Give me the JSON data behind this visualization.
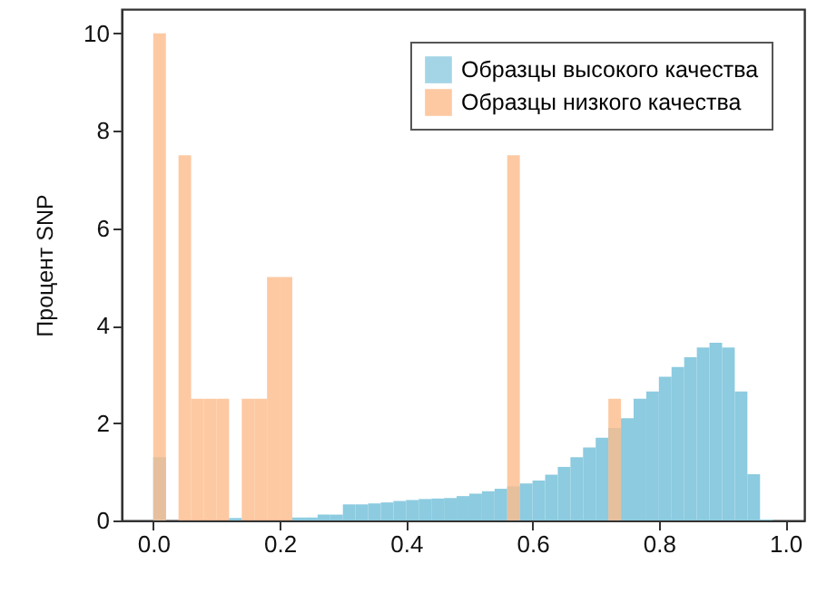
{
  "chart_data": {
    "type": "histogram",
    "ylabel": "Процент SNP",
    "bins": [
      0,
      0.02,
      0.04,
      0.06,
      0.08,
      0.1,
      0.12,
      0.14,
      0.16,
      0.18,
      0.2,
      0.22,
      0.24,
      0.26,
      0.28,
      0.3,
      0.32,
      0.34,
      0.36,
      0.38,
      0.4,
      0.42,
      0.44,
      0.46,
      0.48,
      0.5,
      0.52,
      0.54,
      0.56,
      0.58,
      0.6,
      0.62,
      0.64,
      0.66,
      0.68,
      0.7,
      0.72,
      0.74,
      0.76,
      0.78,
      0.8,
      0.82,
      0.84,
      0.86,
      0.88,
      0.9,
      0.92,
      0.94,
      0.96,
      0.98,
      1.0
    ],
    "series": [
      {
        "name": "Образцы высокого качества",
        "color": "#8ccbe0",
        "values": [
          1.3,
          0,
          0,
          0,
          0,
          0,
          0.05,
          null,
          null,
          null,
          null,
          0.06,
          0.06,
          0.12,
          0.12,
          0.33,
          0.33,
          0.35,
          0.37,
          0.4,
          0.42,
          0.44,
          0.45,
          0.46,
          0.5,
          0.55,
          0.6,
          0.65,
          0.7,
          0.76,
          0.82,
          0.94,
          1.1,
          1.3,
          1.5,
          1.7,
          1.9,
          2.1,
          2.5,
          2.65,
          2.95,
          3.15,
          3.35,
          3.55,
          3.65,
          3.55,
          2.65,
          0.95,
          0.02,
          0
        ]
      },
      {
        "name": "Образцы низкого качества",
        "color": "#fdbb8c",
        "values": [
          10,
          0,
          7.5,
          2.5,
          2.5,
          2.5,
          0,
          2.5,
          2.5,
          5,
          5,
          0,
          0,
          0,
          0,
          0,
          0,
          0,
          0,
          0,
          0,
          0,
          0,
          0,
          0,
          0,
          0,
          0,
          7.5,
          0,
          0,
          0,
          0,
          0,
          0,
          0,
          2.5,
          0,
          0,
          0,
          0,
          0,
          0,
          0,
          0,
          0,
          0,
          0,
          0,
          0
        ]
      }
    ],
    "xlim": [
      -0.05,
      1.03
    ],
    "ylim": [
      0,
      10.5
    ],
    "xticks": [
      {
        "value": 0,
        "label": "0.0"
      },
      0.2,
      0.4,
      0.6,
      0.8,
      {
        "value": 1,
        "label": "1.0"
      }
    ],
    "yticks": [
      0,
      2,
      4,
      6,
      8,
      10
    ],
    "legend": "top right"
  }
}
